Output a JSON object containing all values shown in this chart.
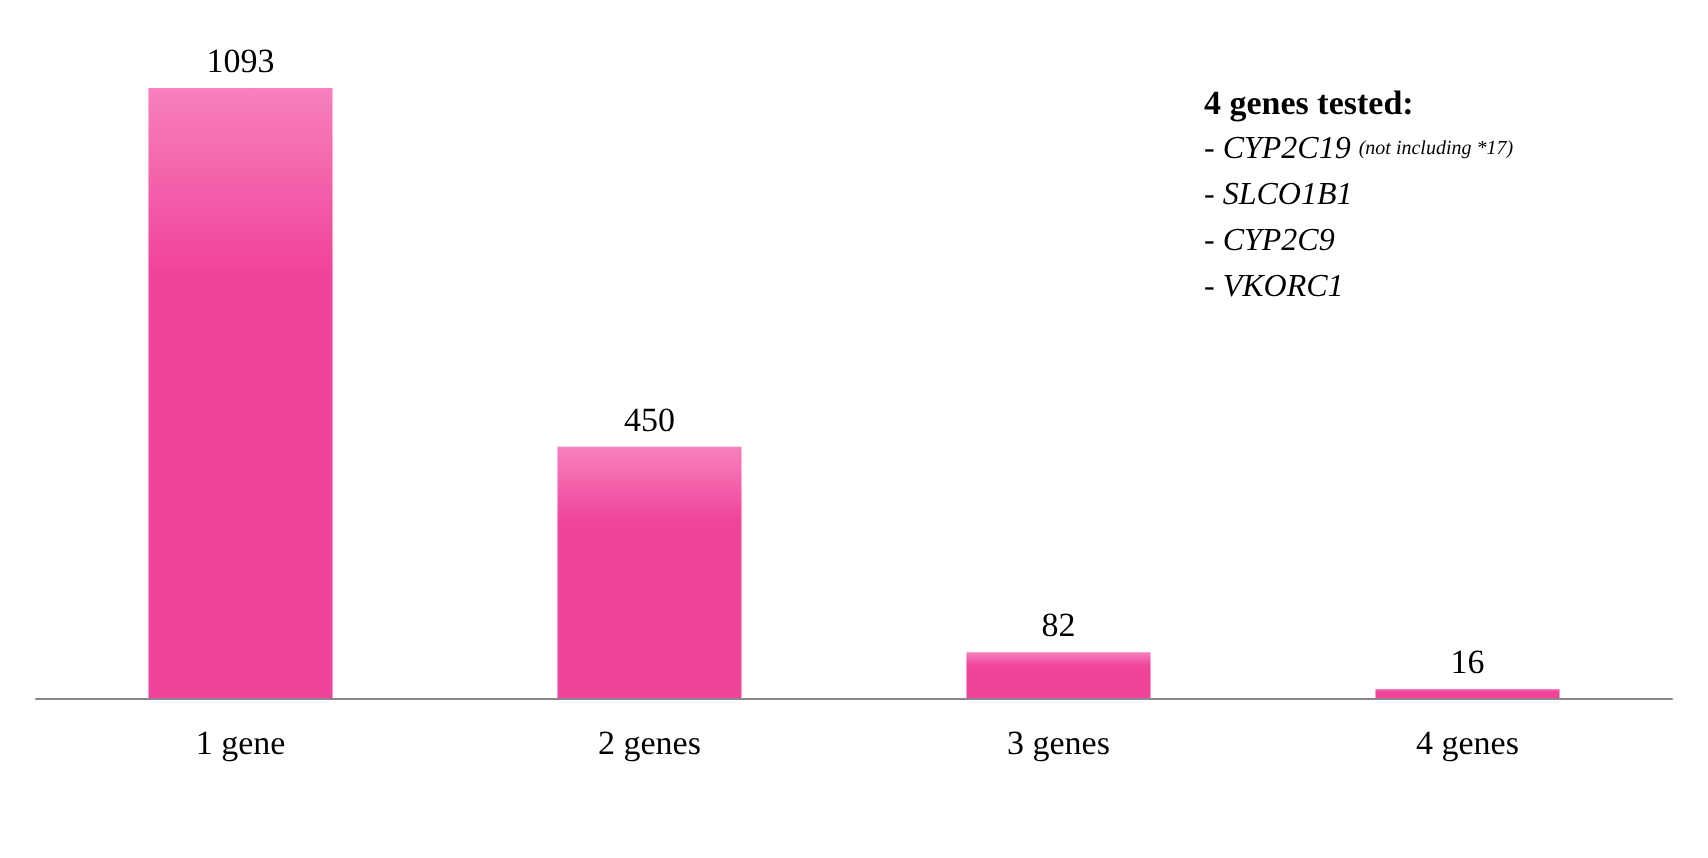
{
  "chart_data": {
    "type": "bar",
    "categories": [
      "1 gene",
      "2 genes",
      "3 genes",
      "4 genes"
    ],
    "values": [
      1093,
      450,
      82,
      16
    ],
    "color": "#f0449a",
    "data_labels": true,
    "grid": false,
    "annotations": [
      "4 genes tested:",
      "- CYP2C19 (not including *17)",
      "- SLCO1B1",
      "- CYP2C9",
      "- VKORC1"
    ]
  }
}
